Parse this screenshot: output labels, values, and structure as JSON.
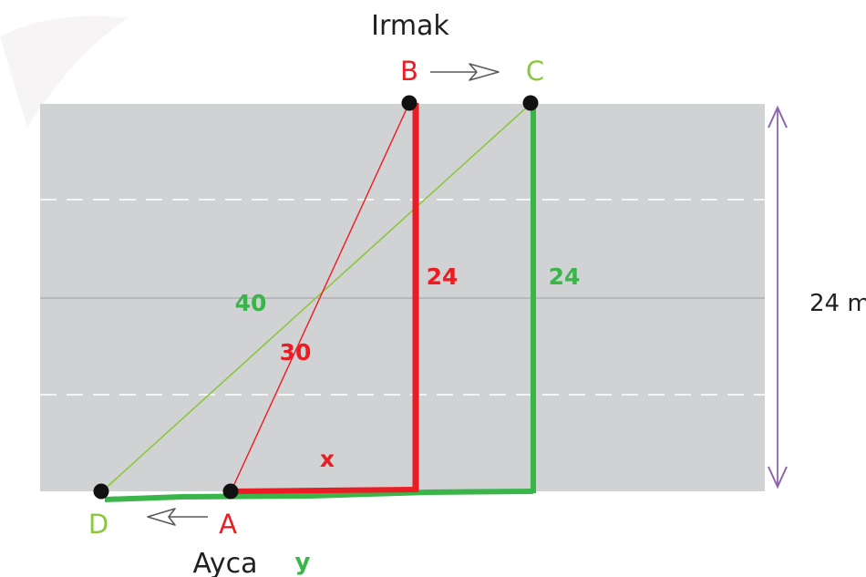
{
  "top_label": "Irmak",
  "bottom_label": "Ayca",
  "points": {
    "A": "A",
    "B": "B",
    "C": "C",
    "D": "D"
  },
  "width_label": "24 m",
  "segments": {
    "BA": "30",
    "B_vertical": "24",
    "C_vertical": "24",
    "CD": "40",
    "x": "x",
    "y": "y"
  },
  "colors": {
    "road": "#d1d2d4",
    "red": "#ec1c24",
    "green": "#39b54a",
    "light_green": "#8dc63f",
    "purple": "#8e64b0",
    "text": "#231f20"
  }
}
